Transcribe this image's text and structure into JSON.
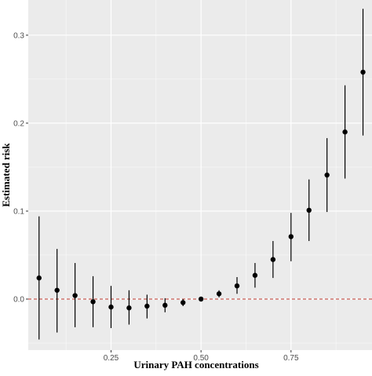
{
  "chart_data": {
    "type": "scatter",
    "xlabel": "Urinary PAH concentrations",
    "ylabel": "Estimated risk",
    "xlim": [
      0.02,
      0.975
    ],
    "ylim": [
      -0.058,
      0.34
    ],
    "x_ticks": [
      0.25,
      0.5,
      0.75
    ],
    "x_tick_labels": [
      "0.25",
      "0.50",
      "0.75"
    ],
    "y_ticks": [
      0.0,
      0.1,
      0.2,
      0.3
    ],
    "y_tick_labels": [
      "0.0",
      "0.1",
      "0.2",
      "0.3"
    ],
    "grid": true,
    "reference_line": {
      "y": 0,
      "style": "dashed",
      "color": "#c0392b"
    },
    "series": [
      {
        "points": [
          {
            "x": 0.05,
            "y": 0.024,
            "lower": -0.046,
            "upper": 0.094
          },
          {
            "x": 0.1,
            "y": 0.01,
            "lower": -0.038,
            "upper": 0.057
          },
          {
            "x": 0.15,
            "y": 0.004,
            "lower": -0.032,
            "upper": 0.041
          },
          {
            "x": 0.2,
            "y": -0.003,
            "lower": -0.032,
            "upper": 0.026
          },
          {
            "x": 0.25,
            "y": -0.009,
            "lower": -0.033,
            "upper": 0.015
          },
          {
            "x": 0.3,
            "y": -0.01,
            "lower": -0.029,
            "upper": 0.01
          },
          {
            "x": 0.35,
            "y": -0.008,
            "lower": -0.022,
            "upper": 0.005
          },
          {
            "x": 0.4,
            "y": -0.007,
            "lower": -0.015,
            "upper": 0.001
          },
          {
            "x": 0.45,
            "y": -0.004,
            "lower": -0.008,
            "upper": 0.0
          },
          {
            "x": 0.5,
            "y": 0.0,
            "lower": 0.0,
            "upper": 0.0
          },
          {
            "x": 0.55,
            "y": 0.006,
            "lower": 0.002,
            "upper": 0.01
          },
          {
            "x": 0.6,
            "y": 0.015,
            "lower": 0.006,
            "upper": 0.025
          },
          {
            "x": 0.65,
            "y": 0.027,
            "lower": 0.013,
            "upper": 0.041
          },
          {
            "x": 0.7,
            "y": 0.045,
            "lower": 0.024,
            "upper": 0.066
          },
          {
            "x": 0.75,
            "y": 0.071,
            "lower": 0.043,
            "upper": 0.098
          },
          {
            "x": 0.8,
            "y": 0.101,
            "lower": 0.066,
            "upper": 0.136
          },
          {
            "x": 0.85,
            "y": 0.141,
            "lower": 0.099,
            "upper": 0.183
          },
          {
            "x": 0.9,
            "y": 0.19,
            "lower": 0.137,
            "upper": 0.243
          },
          {
            "x": 0.95,
            "y": 0.258,
            "lower": 0.186,
            "upper": 0.33
          }
        ]
      }
    ]
  },
  "colors": {
    "panel_bg": "#ebebeb",
    "grid_major": "#ffffff",
    "point": "#000000",
    "reference": "#c0392b"
  }
}
